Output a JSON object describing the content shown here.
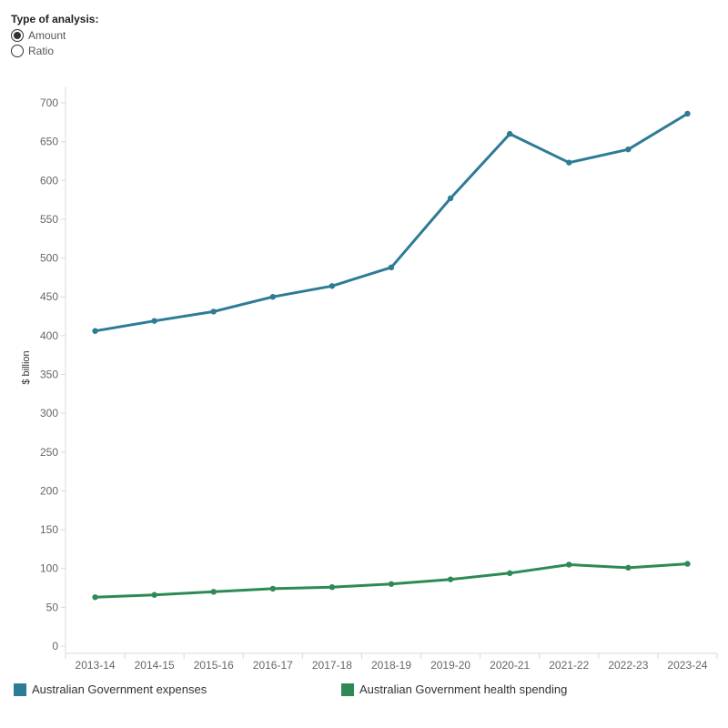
{
  "controls": {
    "title": "Type of analysis:",
    "options": [
      {
        "label": "Amount",
        "selected": true
      },
      {
        "label": "Ratio",
        "selected": false
      }
    ]
  },
  "colors": {
    "expenses": "#2e7b96",
    "health": "#2e8a55",
    "axis_text": "#666666",
    "grid": "#e6e6e6"
  },
  "chart_data": {
    "type": "line",
    "categories": [
      "2013-14",
      "2014-15",
      "2015-16",
      "2016-17",
      "2017-18",
      "2018-19",
      "2019-20",
      "2020-21",
      "2021-22",
      "2022-23",
      "2023-24"
    ],
    "series": [
      {
        "name": "Australian Government expenses",
        "color": "#2e7b96",
        "values": [
          406,
          419,
          431,
          450,
          464,
          488,
          577,
          660,
          623,
          640,
          686
        ]
      },
      {
        "name": "Australian Government health spending",
        "color": "#2e8a55",
        "values": [
          63,
          66,
          70,
          74,
          76,
          80,
          86,
          94,
          105,
          101,
          106
        ]
      }
    ],
    "xlabel": "",
    "ylabel": "$ billion",
    "yticks": [
      0,
      50,
      100,
      150,
      200,
      250,
      300,
      350,
      400,
      450,
      500,
      550,
      600,
      650,
      700
    ],
    "ylim": [
      0,
      700
    ],
    "grid": false,
    "legend_position": "bottom"
  },
  "legend": [
    {
      "label": "Australian Government expenses",
      "color": "#2e7b96"
    },
    {
      "label": "Australian Government health spending",
      "color": "#2e8a55"
    }
  ]
}
